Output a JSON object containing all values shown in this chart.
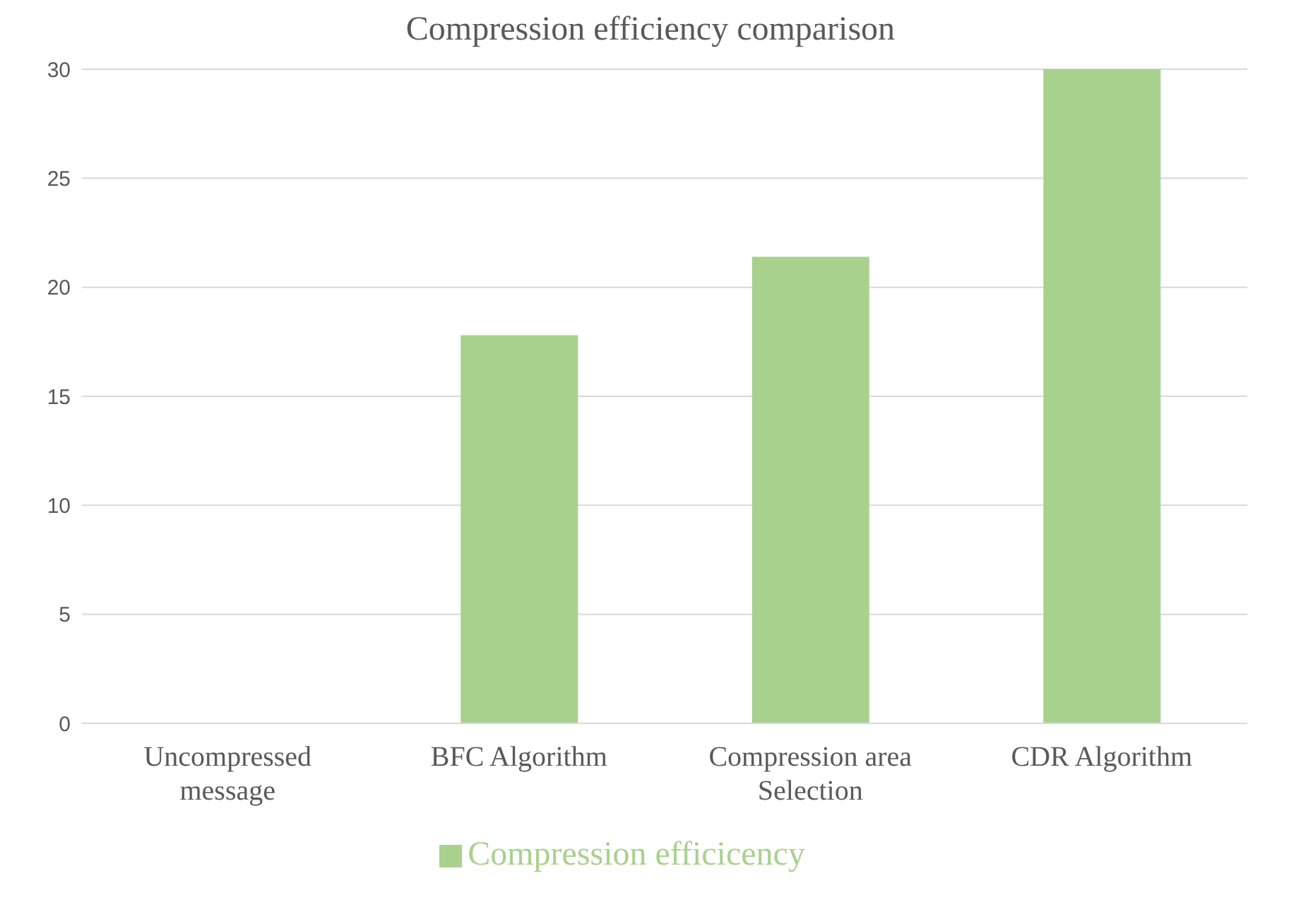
{
  "chart_data": {
    "type": "bar",
    "title": "Compression efficiency comparison",
    "categories": [
      "Uncompressed message",
      "BFC Algorithm",
      "Compression area Selection",
      "CDR Algorithm"
    ],
    "series": [
      {
        "name": "Compression efficicency",
        "color": "#a9d18e",
        "values": [
          0,
          17.8,
          21.4,
          30
        ]
      }
    ],
    "ylim": [
      0,
      30
    ],
    "yticks": [
      0,
      5,
      10,
      15,
      20,
      25,
      30
    ],
    "grid": "y",
    "legend": "bottom"
  }
}
